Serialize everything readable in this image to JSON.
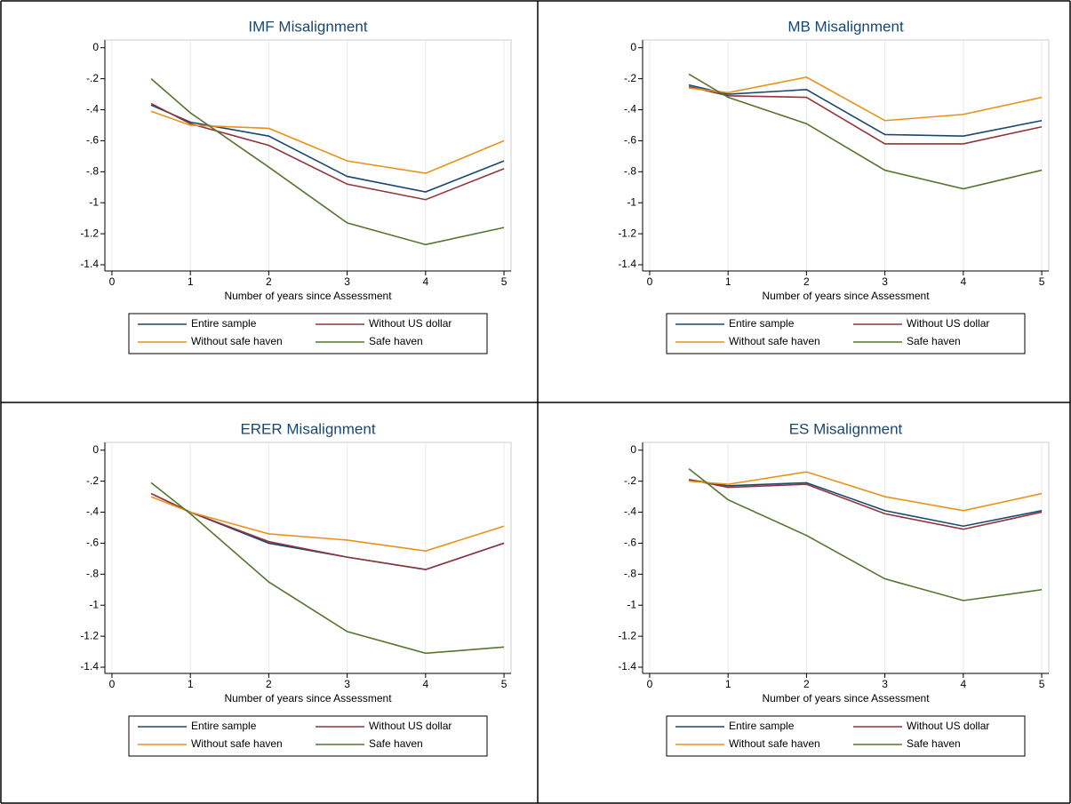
{
  "chart_data": [
    {
      "type": "line",
      "title": "IMF Misalignment",
      "xlabel": "Number of years since Assessment",
      "x": [
        0.5,
        1,
        2,
        3,
        4,
        5
      ],
      "series": [
        {
          "name": "Entire sample",
          "color": "#1a476f",
          "values": [
            -0.37,
            -0.48,
            -0.57,
            -0.83,
            -0.93,
            -0.73
          ]
        },
        {
          "name": "Without US dollar",
          "color": "#90353b",
          "values": [
            -0.36,
            -0.49,
            -0.63,
            -0.88,
            -0.98,
            -0.78
          ]
        },
        {
          "name": "Without safe haven",
          "color": "#e8921c",
          "values": [
            -0.41,
            -0.5,
            -0.52,
            -0.73,
            -0.81,
            -0.6
          ]
        },
        {
          "name": "Safe haven",
          "color": "#55752f",
          "values": [
            -0.2,
            -0.42,
            -0.77,
            -1.13,
            -1.27,
            -1.16
          ]
        }
      ],
      "xlim": [
        -0.09,
        5.09
      ],
      "ylim": [
        -1.44,
        0.05
      ],
      "xticks": [
        0,
        1,
        2,
        3,
        4,
        5
      ],
      "yticks": [
        0,
        {
          "value": -0.2,
          "label": "-.2"
        },
        {
          "value": -0.4,
          "label": "-.4"
        },
        {
          "value": -0.6,
          "label": "-.6"
        },
        {
          "value": -0.8,
          "label": "-.8"
        },
        -1,
        -1.2,
        -1.4
      ],
      "grid": true
    },
    {
      "type": "line",
      "title": "MB Misalignment",
      "xlabel": "Number of years since Assessment",
      "x": [
        0.5,
        1,
        2,
        3,
        4,
        5
      ],
      "series": [
        {
          "name": "Entire sample",
          "color": "#1a476f",
          "values": [
            -0.24,
            -0.3,
            -0.27,
            -0.56,
            -0.57,
            -0.47
          ]
        },
        {
          "name": "Without US dollar",
          "color": "#90353b",
          "values": [
            -0.25,
            -0.31,
            -0.32,
            -0.62,
            -0.62,
            -0.51
          ]
        },
        {
          "name": "Without safe haven",
          "color": "#e8921c",
          "values": [
            -0.26,
            -0.29,
            -0.19,
            -0.47,
            -0.43,
            -0.32
          ]
        },
        {
          "name": "Safe haven",
          "color": "#55752f",
          "values": [
            -0.17,
            -0.32,
            -0.49,
            -0.79,
            -0.91,
            -0.79
          ]
        }
      ],
      "xlim": [
        -0.09,
        5.09
      ],
      "ylim": [
        -1.44,
        0.05
      ],
      "xticks": [
        0,
        1,
        2,
        3,
        4,
        5
      ],
      "yticks": [
        0,
        {
          "value": -0.2,
          "label": "-.2"
        },
        {
          "value": -0.4,
          "label": "-.4"
        },
        {
          "value": -0.6,
          "label": "-.6"
        },
        {
          "value": -0.8,
          "label": "-.8"
        },
        -1,
        -1.2,
        -1.4
      ],
      "grid": true
    },
    {
      "type": "line",
      "title": "ERER Misalignment",
      "xlabel": "Number of years since Assessment",
      "x": [
        0.5,
        1,
        2,
        3,
        4,
        5
      ],
      "series": [
        {
          "name": "Entire sample",
          "color": "#1a476f",
          "values": [
            -0.28,
            -0.4,
            -0.6,
            -0.69,
            -0.77,
            -0.6
          ]
        },
        {
          "name": "Without US dollar",
          "color": "#90353b",
          "values": [
            -0.28,
            -0.4,
            -0.59,
            -0.69,
            -0.77,
            -0.6
          ]
        },
        {
          "name": "Without safe haven",
          "color": "#e8921c",
          "values": [
            -0.3,
            -0.4,
            -0.54,
            -0.58,
            -0.65,
            -0.49
          ]
        },
        {
          "name": "Safe haven",
          "color": "#55752f",
          "values": [
            -0.21,
            -0.41,
            -0.85,
            -1.17,
            -1.31,
            -1.27
          ]
        }
      ],
      "xlim": [
        -0.09,
        5.09
      ],
      "ylim": [
        -1.44,
        0.05
      ],
      "xticks": [
        0,
        1,
        2,
        3,
        4,
        5
      ],
      "yticks": [
        0,
        {
          "value": -0.2,
          "label": "-.2"
        },
        {
          "value": -0.4,
          "label": "-.4"
        },
        {
          "value": -0.6,
          "label": "-.6"
        },
        {
          "value": -0.8,
          "label": "-.8"
        },
        -1,
        -1.2,
        -1.4
      ],
      "grid": true
    },
    {
      "type": "line",
      "title": "ES Misalignment",
      "xlabel": "Number of years since Assessment",
      "x": [
        0.5,
        1,
        2,
        3,
        4,
        5
      ],
      "series": [
        {
          "name": "Entire sample",
          "color": "#1a476f",
          "values": [
            -0.19,
            -0.23,
            -0.21,
            -0.39,
            -0.49,
            -0.39
          ]
        },
        {
          "name": "Without US dollar",
          "color": "#90353b",
          "values": [
            -0.19,
            -0.24,
            -0.22,
            -0.41,
            -0.51,
            -0.4
          ]
        },
        {
          "name": "Without safe haven",
          "color": "#e8921c",
          "values": [
            -0.2,
            -0.22,
            -0.14,
            -0.3,
            -0.39,
            -0.28
          ]
        },
        {
          "name": "Safe haven",
          "color": "#55752f",
          "values": [
            -0.12,
            -0.32,
            -0.55,
            -0.83,
            -0.97,
            -0.9
          ]
        }
      ],
      "xlim": [
        -0.09,
        5.09
      ],
      "ylim": [
        -1.44,
        0.05
      ],
      "xticks": [
        0,
        1,
        2,
        3,
        4,
        5
      ],
      "yticks": [
        0,
        {
          "value": -0.2,
          "label": "-.2"
        },
        {
          "value": -0.4,
          "label": "-.4"
        },
        {
          "value": -0.6,
          "label": "-.6"
        },
        {
          "value": -0.8,
          "label": "-.8"
        },
        -1,
        -1.2,
        -1.4
      ],
      "grid": true
    }
  ]
}
